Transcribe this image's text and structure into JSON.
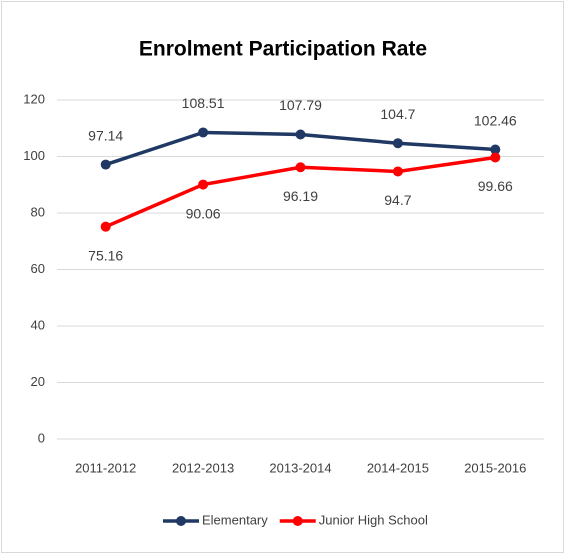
{
  "chart_data": {
    "type": "line",
    "title": "Enrolment Participation Rate",
    "categories": [
      "2011-2012",
      "2012-2013",
      "2013-2014",
      "2014-2015",
      "2015-2016"
    ],
    "series": [
      {
        "name": "Elementary",
        "color": "#1f3864",
        "values": [
          97.14,
          108.51,
          107.79,
          104.7,
          102.46
        ]
      },
      {
        "name": "Junior High School",
        "color": "#ff0000",
        "values": [
          75.16,
          90.06,
          96.19,
          94.7,
          99.66
        ]
      }
    ],
    "ylim": [
      0,
      120
    ],
    "yticks": [
      0,
      20,
      40,
      60,
      80,
      100,
      120
    ],
    "grid": true,
    "legend": "bottom"
  }
}
